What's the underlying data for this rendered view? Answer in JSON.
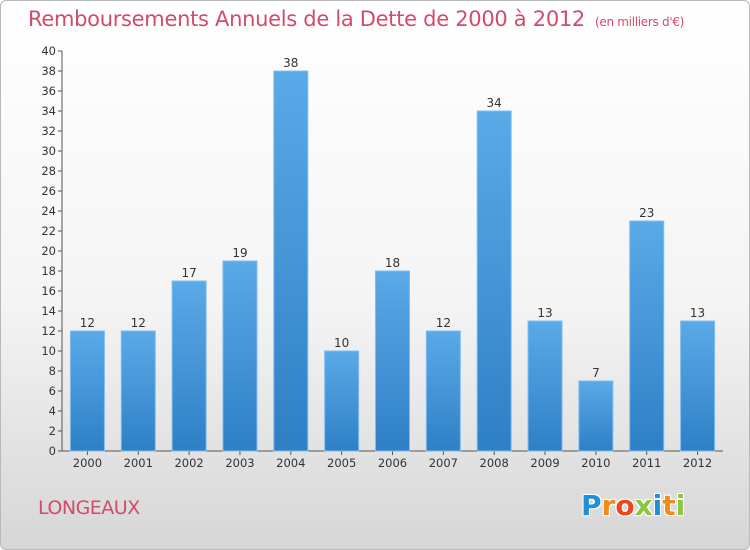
{
  "header": {
    "title": "Remboursements Annuels de la Dette de 2000 à 2012",
    "unit": "(en milliers d'€)"
  },
  "footer": {
    "city": "LONGEAUX",
    "logo": [
      "P",
      "r",
      "o",
      "x",
      "i",
      "t",
      "i"
    ]
  },
  "colors": {
    "title": "#d14b6c",
    "bar_top": "#5aaae8",
    "bar_bottom": "#2f7fc6",
    "logo": [
      "#1f8fd6",
      "#f08c1c",
      "#e8471f",
      "#8cc63f",
      "#1f8fd6",
      "#f08c1c",
      "#8cc63f"
    ]
  },
  "chart_data": {
    "type": "bar",
    "categories": [
      "2000",
      "2001",
      "2002",
      "2003",
      "2004",
      "2005",
      "2006",
      "2007",
      "2008",
      "2009",
      "2010",
      "2011",
      "2012"
    ],
    "values": [
      12,
      12,
      17,
      19,
      38,
      10,
      18,
      12,
      34,
      13,
      7,
      23,
      13
    ],
    "ylim": [
      0,
      40
    ],
    "yticks": [
      0,
      2,
      4,
      6,
      8,
      10,
      12,
      14,
      16,
      18,
      20,
      22,
      24,
      26,
      28,
      30,
      32,
      34,
      36,
      38,
      40
    ],
    "grid": false,
    "data_labels": true
  }
}
